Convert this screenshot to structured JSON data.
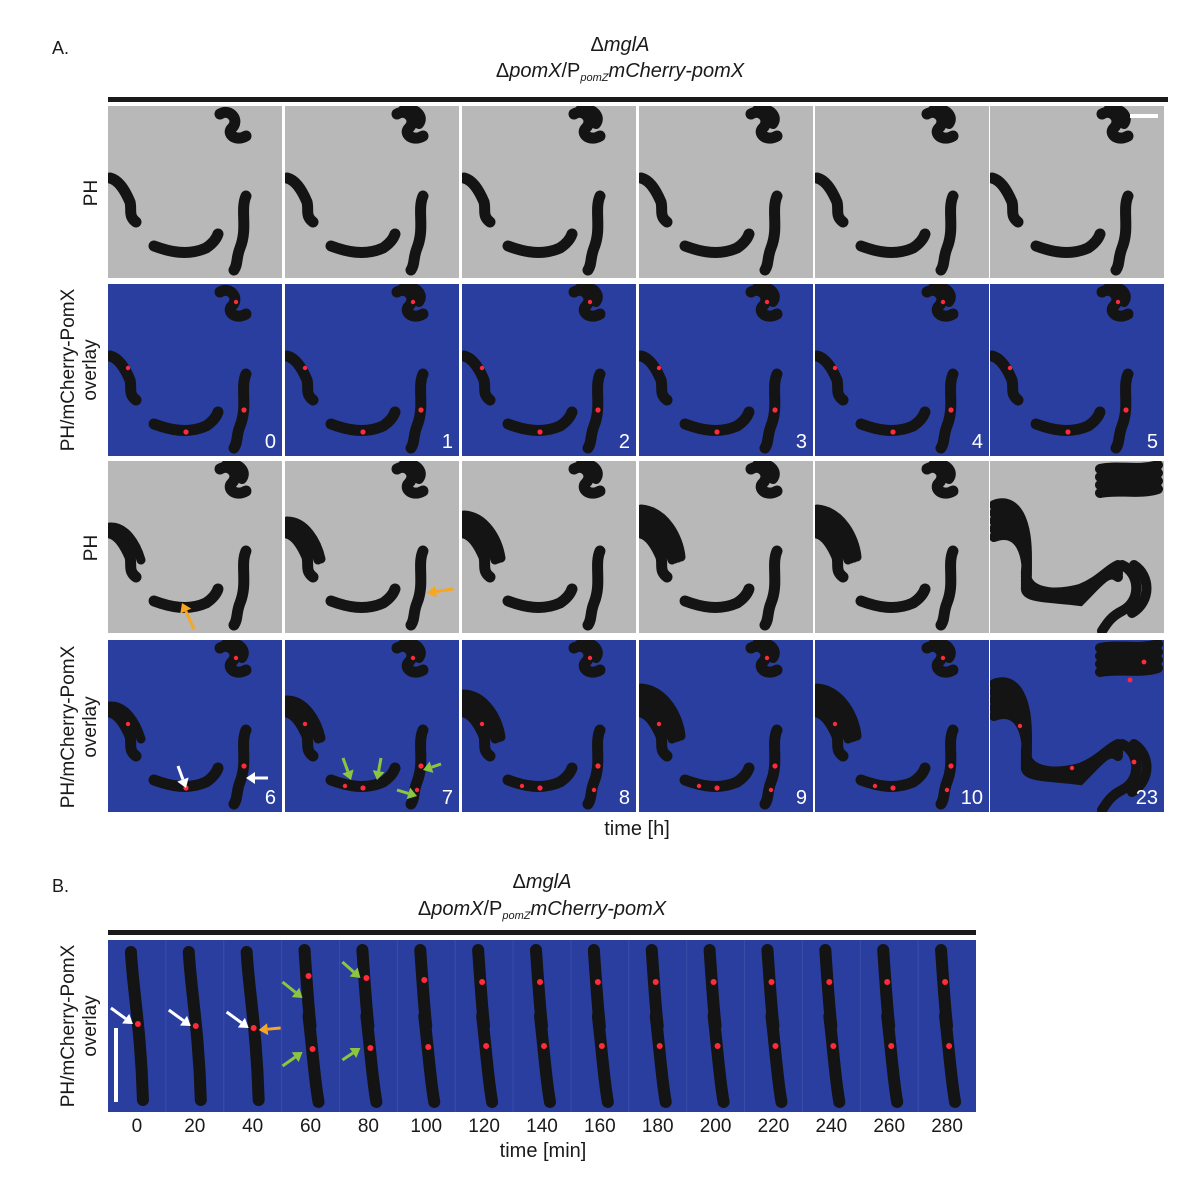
{
  "panelA": {
    "letter": "A.",
    "title_line1_prefix": "Δ",
    "title_line1_gene": "mglA",
    "title_line2_prefix": "Δ",
    "title_line2_gene": "pomX",
    "title_line2_slash": "/P",
    "title_line2_sub": "pomZ",
    "title_line2_construct": "mCherry-pomX",
    "row_label_ph": "PH",
    "row_label_overlay_l1": "PH/mCherry-PomX",
    "row_label_overlay_l2": "overlay",
    "times_row1": [
      "0",
      "1",
      "2",
      "3",
      "4",
      "5"
    ],
    "times_row2": [
      "6",
      "7",
      "8",
      "9",
      "10",
      "23"
    ],
    "xlabel": "time [h]"
  },
  "panelB": {
    "letter": "B.",
    "title_line1_prefix": "Δ",
    "title_line1_gene": "mglA",
    "title_line2_prefix": "Δ",
    "title_line2_gene": "pomX",
    "title_line2_slash": "/P",
    "title_line2_sub": "pomZ",
    "title_line2_construct": "mCherry-pomX",
    "row_label_l1": "PH/mCherry-PomX",
    "row_label_l2": "overlay",
    "times": [
      "0",
      "20",
      "40",
      "60",
      "80",
      "100",
      "120",
      "140",
      "160",
      "180",
      "200",
      "220",
      "240",
      "260",
      "280"
    ],
    "xlabel": "time [min]"
  },
  "colors": {
    "phase_background": "#b8b8b8",
    "overlay_background": "#2a3ea0",
    "cell": "#141414",
    "focus": "#ff2a3a",
    "arrow_white": "#ffffff",
    "arrow_orange": "#f5a623",
    "arrow_green": "#8cc63f"
  }
}
